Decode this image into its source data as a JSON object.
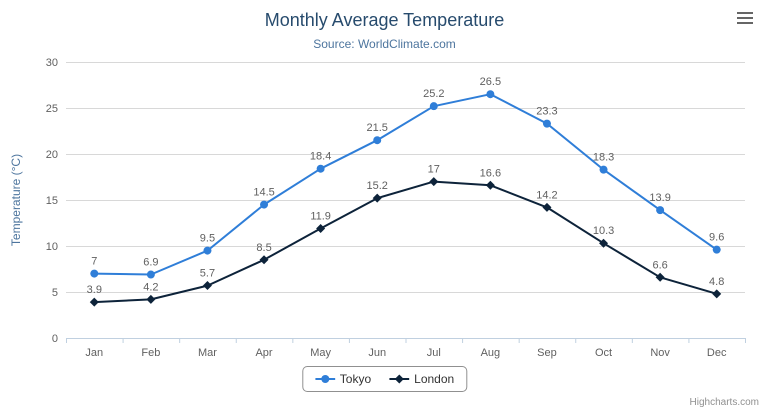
{
  "header": {
    "title": "Monthly Average Temperature",
    "subtitle": "Source: WorldClimate.com"
  },
  "credits": "Highcharts.com",
  "legend": {
    "items": [
      "Tokyo",
      "London"
    ]
  },
  "chart_data": {
    "type": "line",
    "title": "Monthly Average Temperature",
    "subtitle": "Source: WorldClimate.com",
    "categories": [
      "Jan",
      "Feb",
      "Mar",
      "Apr",
      "May",
      "Jun",
      "Jul",
      "Aug",
      "Sep",
      "Oct",
      "Nov",
      "Dec"
    ],
    "series": [
      {
        "name": "Tokyo",
        "color": "#2f7ed8",
        "marker": "circle",
        "values": [
          7,
          6.9,
          9.5,
          14.5,
          18.4,
          21.5,
          25.2,
          26.5,
          23.3,
          18.3,
          13.9,
          9.6
        ]
      },
      {
        "name": "London",
        "color": "#0d233a",
        "marker": "diamond",
        "values": [
          3.9,
          4.2,
          5.7,
          8.5,
          11.9,
          15.2,
          17,
          16.6,
          14.2,
          10.3,
          6.6,
          4.8
        ]
      }
    ],
    "xlabel": "",
    "ylabel": "Temperature (°C)",
    "ylim": [
      0,
      30
    ],
    "yticks": [
      0,
      5,
      10,
      15,
      20,
      25,
      30
    ],
    "grid": true,
    "data_labels": true,
    "legend_position": "bottom"
  },
  "colors": {
    "title": "#274b6d",
    "subtitle": "#4d759e",
    "axis_title": "#4d759e",
    "tick_label": "#606060",
    "grid": "#d8d8d8",
    "axis_line": "#c0d0e0",
    "data_label": "#606060",
    "legend_border": "#909090",
    "credits": "#909090"
  }
}
